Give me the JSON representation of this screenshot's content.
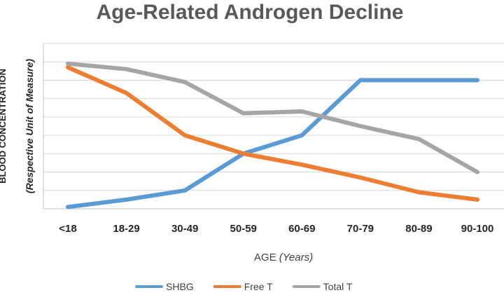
{
  "chart_data": {
    "type": "line",
    "title": "Age-Related Androgen Decline",
    "xlabel": "AGE",
    "xlabel_unit": "(Years)",
    "ylabel_main": "BLOOD CONCENTRATION",
    "ylabel_sub": "(Respective Unit of Measure)",
    "categories": [
      "<18",
      "18-29",
      "30-49",
      "50-59",
      "60-69",
      "70-79",
      "80-89",
      "90-100"
    ],
    "ylim": [
      0,
      9
    ],
    "y_gridlines": 9,
    "y_tick_labels_shown": false,
    "grid": true,
    "legend_position": "bottom",
    "series": [
      {
        "name": "SHBG",
        "color": "#5B9BD5",
        "values": [
          0.1,
          0.5,
          1.0,
          3.0,
          4.0,
          7.0,
          7.0,
          7.0
        ]
      },
      {
        "name": "Free T",
        "color": "#ED7D31",
        "values": [
          7.7,
          6.3,
          4.0,
          3.0,
          2.4,
          1.7,
          0.9,
          0.5
        ]
      },
      {
        "name": "Total T",
        "color": "#A5A5A5",
        "values": [
          7.9,
          7.6,
          6.9,
          5.2,
          5.3,
          4.5,
          3.8,
          2.0
        ]
      }
    ]
  }
}
